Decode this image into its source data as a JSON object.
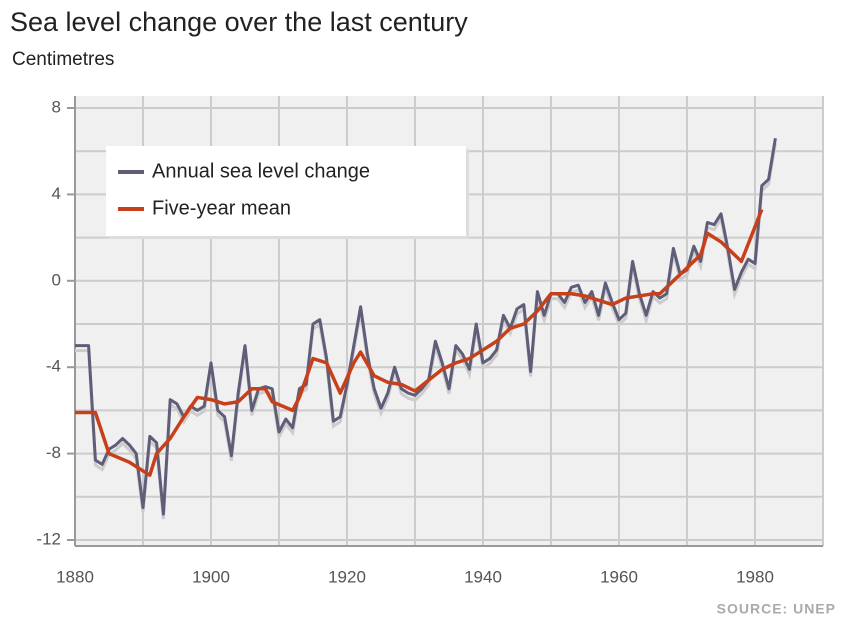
{
  "chart_data": {
    "type": "line",
    "title": "Sea level change over the last century",
    "subtitle": "Centimetres",
    "source": "SOURCE: UNEP",
    "xlim": [
      1880,
      1990
    ],
    "xticks": [
      1880,
      1900,
      1920,
      1940,
      1960,
      1980
    ],
    "xminor_ticks": [
      1890,
      1910,
      1930,
      1950,
      1970,
      1990
    ],
    "ylim": [
      -12,
      8
    ],
    "yticks": [
      -12,
      -8,
      -4,
      0,
      4,
      8
    ],
    "yminor_ticks": [
      -10,
      -6,
      -2,
      2,
      6
    ],
    "grid": true,
    "legend": "upper left",
    "series": [
      {
        "name": "Annual sea level change",
        "color": "#5f5d78",
        "x": [
          1880,
          1881,
          1882,
          1883,
          1884,
          1885,
          1886,
          1887,
          1888,
          1889,
          1890,
          1891,
          1892,
          1893,
          1894,
          1895,
          1896,
          1897,
          1898,
          1899,
          1900,
          1901,
          1902,
          1903,
          1904,
          1905,
          1906,
          1907,
          1908,
          1909,
          1910,
          1911,
          1912,
          1913,
          1914,
          1915,
          1916,
          1917,
          1918,
          1919,
          1920,
          1921,
          1922,
          1923,
          1924,
          1925,
          1926,
          1927,
          1928,
          1929,
          1930,
          1931,
          1932,
          1933,
          1934,
          1935,
          1936,
          1937,
          1938,
          1939,
          1940,
          1941,
          1942,
          1943,
          1944,
          1945,
          1946,
          1947,
          1948,
          1949,
          1950,
          1951,
          1952,
          1953,
          1954,
          1955,
          1956,
          1957,
          1958,
          1959,
          1960,
          1961,
          1962,
          1963,
          1964,
          1965,
          1966,
          1967,
          1968,
          1969,
          1970,
          1971,
          1972,
          1973,
          1974,
          1975,
          1976,
          1977,
          1978,
          1979,
          1980,
          1981,
          1982,
          1983
        ],
        "values": [
          -3,
          -3,
          -3,
          -8.3,
          -8.5,
          -7.8,
          -7.6,
          -7.3,
          -7.6,
          -8,
          -10.5,
          -7.2,
          -7.5,
          -10.8,
          -5.5,
          -5.7,
          -6.3,
          -5.8,
          -6,
          -5.8,
          -3.8,
          -6,
          -6.3,
          -8.1,
          -5.2,
          -3,
          -6,
          -5,
          -4.9,
          -5,
          -7,
          -6.4,
          -6.8,
          -5,
          -4.8,
          -2,
          -1.8,
          -3.6,
          -6.5,
          -6.3,
          -4.8,
          -3,
          -1.2,
          -3.4,
          -5,
          -5.9,
          -5.2,
          -4,
          -5,
          -5.2,
          -5.3,
          -5,
          -4.6,
          -2.8,
          -3.8,
          -5,
          -3,
          -3.4,
          -4.1,
          -2,
          -3.8,
          -3.6,
          -3.2,
          -1.6,
          -2.2,
          -1.3,
          -1.1,
          -4.2,
          -0.5,
          -1.6,
          -0.6,
          -0.6,
          -1,
          -0.3,
          -0.2,
          -1,
          -0.5,
          -1.6,
          -0.1,
          -1,
          -1.8,
          -1.5,
          0.9,
          -0.6,
          -1.6,
          -0.5,
          -0.8,
          -0.6,
          1.5,
          0.3,
          0.5,
          1.6,
          0.9,
          2.7,
          2.6,
          3.1,
          1.5,
          -0.4,
          0.4,
          1,
          0.8,
          4.4,
          4.7,
          6.6
        ]
      },
      {
        "name": "Five-year mean",
        "color": "#c8401a",
        "x": [
          1880,
          1883,
          1885,
          1888,
          1891,
          1892,
          1894,
          1896,
          1898,
          1900,
          1902,
          1904,
          1906,
          1908,
          1909,
          1912,
          1913,
          1915,
          1917,
          1919,
          1921,
          1922,
          1924,
          1926,
          1928,
          1930,
          1932,
          1934,
          1936,
          1938,
          1940,
          1942,
          1944,
          1946,
          1948,
          1950,
          1953,
          1955,
          1957,
          1959,
          1961,
          1963,
          1965,
          1966,
          1968,
          1970,
          1972,
          1973,
          1975,
          1978,
          1981
        ],
        "values": [
          -6.1,
          -6.1,
          -8,
          -8.4,
          -9,
          -8,
          -7.3,
          -6.3,
          -5.4,
          -5.5,
          -5.7,
          -5.6,
          -5,
          -5,
          -5.6,
          -6,
          -5.4,
          -3.6,
          -3.8,
          -5.2,
          -3.8,
          -3.3,
          -4.4,
          -4.7,
          -4.8,
          -5.1,
          -4.6,
          -4.1,
          -3.8,
          -3.6,
          -3.2,
          -2.8,
          -2.2,
          -2,
          -1.4,
          -0.6,
          -0.6,
          -0.7,
          -0.9,
          -1.1,
          -0.8,
          -0.7,
          -0.6,
          -0.6,
          0,
          0.6,
          1.2,
          2.2,
          1.8,
          0.9,
          3.3
        ]
      }
    ]
  }
}
